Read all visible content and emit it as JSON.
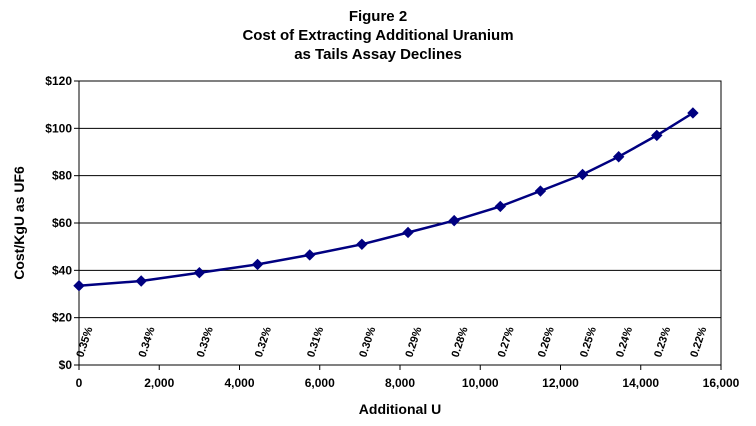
{
  "chart_data": {
    "type": "line",
    "title_lines": [
      "Figure 2",
      "Cost of Extracting Additional Uranium",
      "as Tails Assay Declines"
    ],
    "xlabel": "Additional U",
    "ylabel": "Cost/KgU as UF6",
    "xlim": [
      0,
      16000
    ],
    "ylim": [
      0,
      120
    ],
    "x_ticks": [
      0,
      2000,
      4000,
      6000,
      8000,
      10000,
      12000,
      14000,
      16000
    ],
    "x_tick_labels": [
      "0",
      "2,000",
      "4,000",
      "6,000",
      "8,000",
      "10,000",
      "12,000",
      "14,000",
      "16,000"
    ],
    "y_ticks": [
      0,
      20,
      40,
      60,
      80,
      100,
      120
    ],
    "y_tick_labels": [
      "$0",
      "$20",
      "$40",
      "$60",
      "$80",
      "$100",
      "$120"
    ],
    "grid": "horizontal",
    "legend": "none",
    "series_color": "#000080",
    "series": [
      {
        "x": [
          0,
          1550,
          3000,
          4450,
          5750,
          7050,
          8200,
          9350,
          10500,
          11500,
          12550,
          13450,
          14400,
          15300
        ],
        "y": [
          33.5,
          35.5,
          39,
          42.5,
          46.5,
          51,
          56,
          61,
          67,
          73.5,
          80.5,
          88,
          97,
          106.5
        ],
        "labels": [
          "0.35%",
          "0.34%",
          "0.33%",
          "0.32%",
          "0.31%",
          "0.30%",
          "0.29%",
          "0.28%",
          "0.27%",
          "0.26%",
          "0.25%",
          "0.24%",
          "0.23%",
          "0.22%"
        ]
      }
    ]
  }
}
